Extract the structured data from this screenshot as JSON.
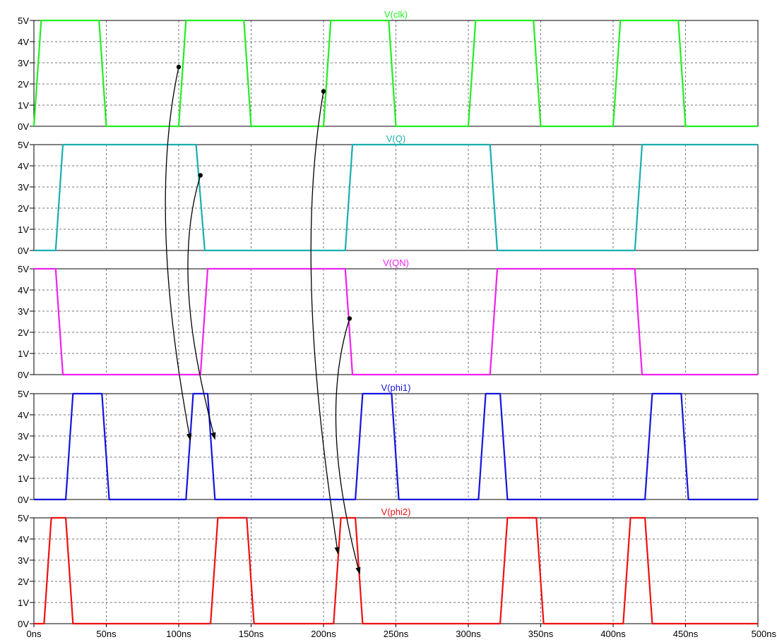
{
  "chart_data": {
    "type": "line",
    "x_unit": "ns",
    "y_unit": "V",
    "xlim": [
      0,
      500
    ],
    "ylim": [
      0,
      5
    ],
    "x_ticks": [
      "0ns",
      "50ns",
      "100ns",
      "150ns",
      "200ns",
      "250ns",
      "300ns",
      "350ns",
      "400ns",
      "450ns",
      "500ns"
    ],
    "y_ticks": [
      "0V",
      "1V",
      "2V",
      "3V",
      "4V",
      "5V"
    ],
    "grid": true,
    "series": [
      {
        "name": "V(clk)",
        "color": "#22ee22",
        "points": [
          [
            0,
            0
          ],
          [
            5,
            5
          ],
          [
            45,
            5
          ],
          [
            50,
            0
          ],
          [
            100,
            0
          ],
          [
            105,
            5
          ],
          [
            145,
            5
          ],
          [
            150,
            0
          ],
          [
            200,
            0
          ],
          [
            205,
            5
          ],
          [
            245,
            5
          ],
          [
            250,
            0
          ],
          [
            300,
            0
          ],
          [
            305,
            5
          ],
          [
            345,
            5
          ],
          [
            350,
            0
          ],
          [
            400,
            0
          ],
          [
            405,
            5
          ],
          [
            445,
            5
          ],
          [
            450,
            0
          ],
          [
            500,
            0
          ]
        ]
      },
      {
        "name": "V(Q)",
        "color": "#1aaeae",
        "points": [
          [
            0,
            0
          ],
          [
            15,
            0
          ],
          [
            20,
            5
          ],
          [
            112,
            5
          ],
          [
            118,
            0
          ],
          [
            215,
            0
          ],
          [
            220,
            5
          ],
          [
            315,
            5
          ],
          [
            320,
            0
          ],
          [
            415,
            0
          ],
          [
            420,
            5
          ],
          [
            500,
            5
          ]
        ]
      },
      {
        "name": "V(QN)",
        "color": "#ee22ee",
        "points": [
          [
            0,
            5
          ],
          [
            15,
            5
          ],
          [
            20,
            0
          ],
          [
            115,
            0
          ],
          [
            120,
            5
          ],
          [
            215,
            5
          ],
          [
            220,
            0
          ],
          [
            315,
            0
          ],
          [
            320,
            5
          ],
          [
            415,
            5
          ],
          [
            420,
            0
          ],
          [
            500,
            0
          ]
        ]
      },
      {
        "name": "V(phi1)",
        "color": "#1515dd",
        "points": [
          [
            0,
            0
          ],
          [
            22,
            0
          ],
          [
            27,
            5
          ],
          [
            47,
            5
          ],
          [
            52,
            0
          ],
          [
            105,
            0
          ],
          [
            110,
            5
          ],
          [
            120,
            5
          ],
          [
            125,
            0
          ],
          [
            222,
            0
          ],
          [
            227,
            5
          ],
          [
            247,
            5
          ],
          [
            252,
            0
          ],
          [
            307,
            0
          ],
          [
            312,
            5
          ],
          [
            322,
            5
          ],
          [
            327,
            0
          ],
          [
            422,
            0
          ],
          [
            427,
            5
          ],
          [
            447,
            5
          ],
          [
            452,
            0
          ],
          [
            500,
            0
          ]
        ]
      },
      {
        "name": "V(phi2)",
        "color": "#ee1111",
        "points": [
          [
            0,
            0
          ],
          [
            7,
            0
          ],
          [
            12,
            5
          ],
          [
            22,
            5
          ],
          [
            27,
            0
          ],
          [
            122,
            0
          ],
          [
            127,
            5
          ],
          [
            147,
            5
          ],
          [
            152,
            0
          ],
          [
            207,
            0
          ],
          [
            212,
            5
          ],
          [
            222,
            5
          ],
          [
            227,
            0
          ],
          [
            322,
            0
          ],
          [
            327,
            5
          ],
          [
            347,
            5
          ],
          [
            352,
            0
          ],
          [
            407,
            0
          ],
          [
            412,
            5
          ],
          [
            422,
            5
          ],
          [
            427,
            0
          ],
          [
            500,
            0
          ]
        ]
      }
    ],
    "annotations": [
      {
        "from": {
          "series": 0,
          "x": 100,
          "y": 2.8
        },
        "to": {
          "series": 3,
          "x": 108,
          "y": 2.8
        }
      },
      {
        "from": {
          "series": 0,
          "x": 200,
          "y": 1.65
        },
        "to": {
          "series": 4,
          "x": 210,
          "y": 3.3
        }
      },
      {
        "from": {
          "series": 1,
          "x": 115,
          "y": 3.55
        },
        "to": {
          "series": 3,
          "x": 125,
          "y": 2.85
        }
      },
      {
        "from": {
          "series": 2,
          "x": 218,
          "y": 2.65
        },
        "to": {
          "series": 4,
          "x": 225,
          "y": 2.35
        }
      }
    ]
  }
}
